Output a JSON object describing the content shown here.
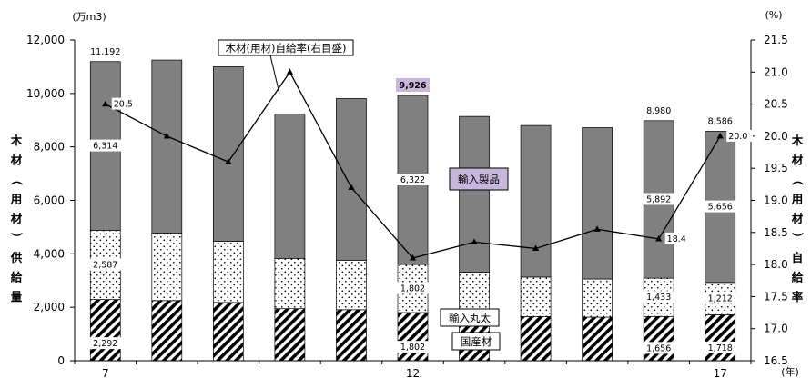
{
  "chart_data": {
    "type": "bar",
    "stacked": true,
    "x_categories": [
      "7",
      "",
      "",
      "",
      "",
      "12",
      "",
      "",
      "",
      "",
      "17"
    ],
    "x_unit": "(年)",
    "left_axis": {
      "unit": "(万m3)",
      "label": "木材（用材）供給量",
      "ylim": [
        0,
        12000
      ],
      "ticks": [
        "0",
        "2,000",
        "4,000",
        "6,000",
        "8,000",
        "10,000",
        "12,000"
      ],
      "tick_values": [
        0,
        2000,
        4000,
        6000,
        8000,
        10000,
        12000
      ]
    },
    "right_axis": {
      "unit": "(%)",
      "label": "木材（用材）自給率",
      "ylim": [
        16.5,
        21.5
      ],
      "ticks": [
        "16.5",
        "17.0",
        "17.5",
        "18.0",
        "18.5",
        "19.0",
        "19.5",
        "20.0",
        "20.5",
        "21.0",
        "21.5"
      ],
      "tick_values": [
        16.5,
        17.0,
        17.5,
        18.0,
        18.5,
        19.0,
        19.5,
        20.0,
        20.5,
        21.0,
        21.5
      ]
    },
    "series": [
      {
        "name": "国産材",
        "values": [
          2292,
          2250,
          2180,
          1950,
          1910,
          1802,
          1730,
          1650,
          1630,
          1656,
          1718
        ],
        "pattern": "diagonal"
      },
      {
        "name": "輸入丸太",
        "values": [
          2587,
          2530,
          2290,
          1880,
          1850,
          1802,
          1580,
          1480,
          1430,
          1433,
          1212
        ],
        "pattern": "dots"
      },
      {
        "name": "輸入製品",
        "values": [
          6314,
          6470,
          6530,
          5400,
          6050,
          6322,
          5830,
          5670,
          5660,
          5892,
          5656
        ],
        "pattern": "solid",
        "color": "#808080"
      }
    ],
    "totals": [
      11192,
      11250,
      11000,
      9230,
      9810,
      9926,
      9140,
      8800,
      8720,
      8980,
      8586
    ],
    "line_series": {
      "name": "木材(用材)自給率(右目盛)",
      "axis": "right",
      "values": [
        20.5,
        20.0,
        19.6,
        21.0,
        19.2,
        18.1,
        18.35,
        18.25,
        18.55,
        18.4,
        20.0
      ]
    },
    "data_labels": {
      "bar_values": [
        {
          "bar": 0,
          "series": "国産材",
          "text": "2,292"
        },
        {
          "bar": 0,
          "series": "輸入丸太",
          "text": "2,587"
        },
        {
          "bar": 0,
          "series": "輸入製品",
          "text": "6,314"
        },
        {
          "bar": 0,
          "series": "total",
          "text": "11,192"
        },
        {
          "bar": 5,
          "series": "国産材",
          "text": "1,802"
        },
        {
          "bar": 5,
          "series": "輸入丸太",
          "text": "1,802"
        },
        {
          "bar": 5,
          "series": "輸入製品",
          "text": "6,322"
        },
        {
          "bar": 5,
          "series": "total",
          "text": "9,926",
          "highlight": true
        },
        {
          "bar": 9,
          "series": "国産材",
          "text": "1,656"
        },
        {
          "bar": 9,
          "series": "輸入丸太",
          "text": "1,433"
        },
        {
          "bar": 9,
          "series": "輸入製品",
          "text": "5,892"
        },
        {
          "bar": 9,
          "series": "total",
          "text": "8,980"
        },
        {
          "bar": 10,
          "series": "国産材",
          "text": "1,718"
        },
        {
          "bar": 10,
          "series": "輸入丸太",
          "text": "1,212"
        },
        {
          "bar": 10,
          "series": "輸入製品",
          "text": "5,656"
        },
        {
          "bar": 10,
          "series": "total",
          "text": "8,586"
        }
      ],
      "line_values": [
        {
          "point": 0,
          "text": "20.5"
        },
        {
          "point": 9,
          "text": "18.4"
        },
        {
          "point": 10,
          "text": "20.0"
        }
      ]
    },
    "legend_boxes": [
      {
        "series": "輸入製品",
        "text": "輸入製品",
        "background": "#c9b6dd"
      },
      {
        "series": "輸入丸太",
        "text": "輸入丸太",
        "background": "#ffffff"
      },
      {
        "series": "国産材",
        "text": "国産材",
        "background": "#ffffff"
      },
      {
        "series": "line",
        "text": "木材(用材)自給率(右目盛)",
        "background": "#ffffff"
      }
    ],
    "grid": false
  }
}
